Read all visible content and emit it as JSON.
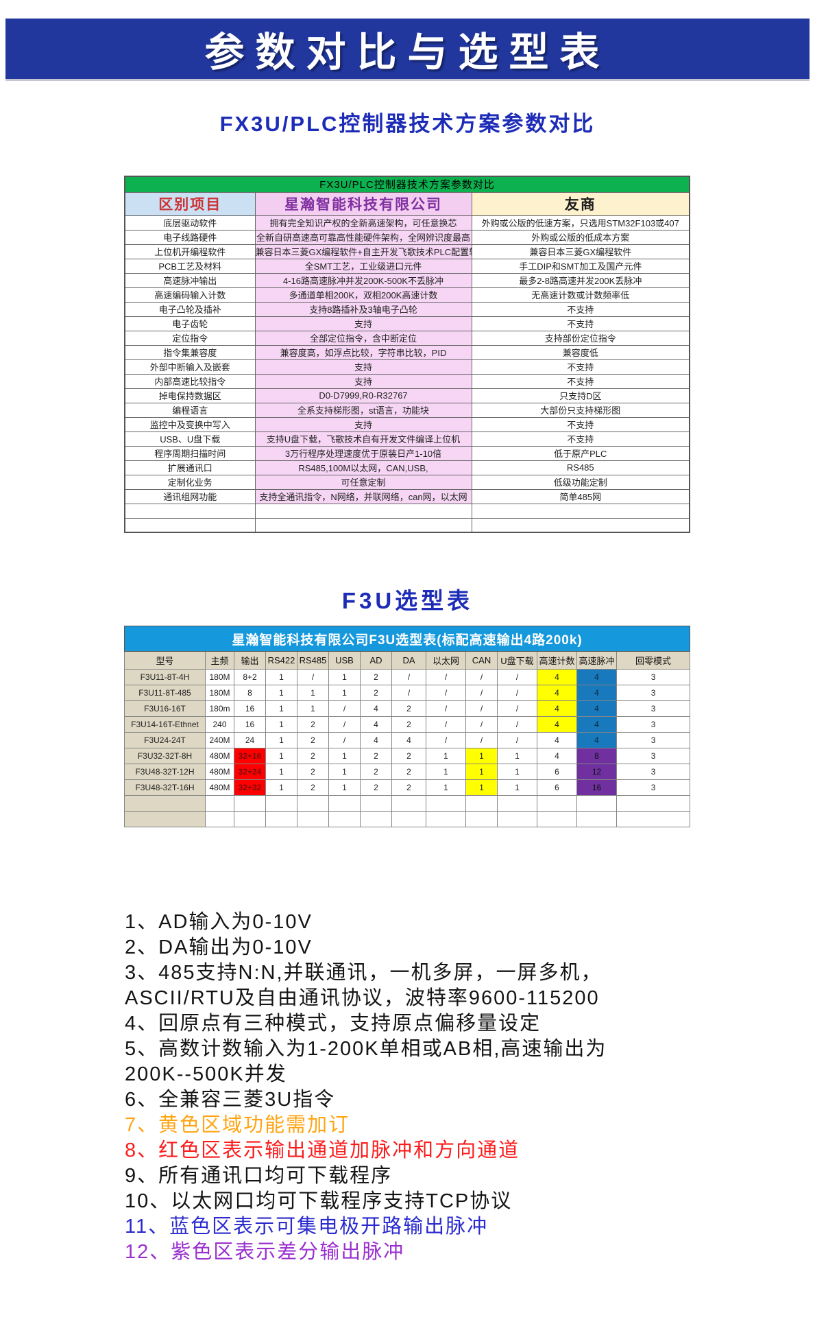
{
  "banner": {
    "title": "参数对比与选型表"
  },
  "section1": {
    "title": "FX3U/PLC控制器技术方案参数对比"
  },
  "table1": {
    "header": "FX3U/PLC控制器技术方案参数对比",
    "columns": [
      "区别项目",
      "星瀚智能科技有限公司",
      "友商"
    ],
    "rows": [
      [
        "底层驱动软件",
        "拥有完全知识产权的全新高速架构，可任意换芯",
        "外购或公版的低速方案，只选用STM32F103或407"
      ],
      [
        "电子线路硬件",
        "全新自研高速高可靠高性能硬件架构，全网辨识度最高",
        "外购或公版的低成本方案"
      ],
      [
        "上位机开编程软件",
        "兼容日本三菱GX编程软件+自主开发飞歌技术PLC配置软件",
        "兼容日本三菱GX编程软件"
      ],
      [
        "PCB工艺及材料",
        "全SMT工艺，工业级进口元件",
        "手工DIP和SMT加工及国产元件"
      ],
      [
        "高速脉冲输出",
        "4-16路高速脉冲并发200K-500K不丢脉冲",
        "最多2-8路高速并发200K丢脉冲"
      ],
      [
        "高速编码输入计数",
        "多通道单相200K，双相200K高速计数",
        "无高速计数或计数频率低"
      ],
      [
        "电子凸轮及插补",
        "支持8路插补及3轴电子凸轮",
        "不支持"
      ],
      [
        "电子齿轮",
        "支持",
        "不支持"
      ],
      [
        "定位指令",
        "全部定位指令，含中断定位",
        "支持部份定位指令"
      ],
      [
        "指令集兼容度",
        "兼容度高，如浮点比较，字符串比较，PID",
        "兼容度低"
      ],
      [
        "外部中断输入及嵌套",
        "支持",
        "不支持"
      ],
      [
        "内部高速比较指令",
        "支持",
        "不支持"
      ],
      [
        "掉电保持数据区",
        "D0-D7999,R0-R32767",
        "只支持D区"
      ],
      [
        "编程语言",
        "全系支持梯形图，st语言，功能块",
        "大部份只支持梯形图"
      ],
      [
        "监控中及变换中写入",
        "支持",
        "不支持"
      ],
      [
        "USB、U盘下载",
        "支持U盘下载，飞歌技术自有开发文件编译上位机",
        "不支持"
      ],
      [
        "程序周期扫描时间",
        "3万行程序处理速度优于原装日产1-10倍",
        "低于原产PLC"
      ],
      [
        "扩展通讯口",
        "RS485,100M以太网，CAN,USB,",
        "RS485"
      ],
      [
        "定制化业务",
        "可任意定制",
        "低级功能定制"
      ],
      [
        "通讯组网功能",
        "支持全通讯指令，N网络，并联网络，can网，以太网",
        "简单485网"
      ]
    ],
    "empty_rows": 2
  },
  "section2": {
    "title": "F3U选型表"
  },
  "table2": {
    "title": "星瀚智能科技有限公司F3U选型表(标配高速输出4路200k)",
    "columns": [
      "型号",
      "主频",
      "输出",
      "RS422",
      "RS485",
      "USB",
      "AD",
      "DA",
      "以太网",
      "CAN",
      "U盘下载",
      "高速计数",
      "高速脉冲",
      "回零模式"
    ],
    "cell_colors": {
      "yellow": "#ffff00",
      "blue": "#1879bd",
      "red": "#fe0000",
      "purple": "#7030a0"
    },
    "rows": [
      [
        {
          "v": "F3U11-8T-4H"
        },
        {
          "v": "180M"
        },
        {
          "v": "8+2"
        },
        {
          "v": "1"
        },
        {
          "v": "/"
        },
        {
          "v": "1"
        },
        {
          "v": "2"
        },
        {
          "v": "/"
        },
        {
          "v": "/"
        },
        {
          "v": "/"
        },
        {
          "v": "/"
        },
        {
          "v": "4",
          "bg": "yellow"
        },
        {
          "v": "4",
          "bg": "blue"
        },
        {
          "v": "3"
        }
      ],
      [
        {
          "v": "F3U11-8T-485"
        },
        {
          "v": "180M"
        },
        {
          "v": "8"
        },
        {
          "v": "1"
        },
        {
          "v": "1"
        },
        {
          "v": "1"
        },
        {
          "v": "2"
        },
        {
          "v": "/"
        },
        {
          "v": "/"
        },
        {
          "v": "/"
        },
        {
          "v": "/"
        },
        {
          "v": "4",
          "bg": "yellow"
        },
        {
          "v": "4",
          "bg": "blue"
        },
        {
          "v": "3"
        }
      ],
      [
        {
          "v": "F3U16-16T"
        },
        {
          "v": "180m"
        },
        {
          "v": "16"
        },
        {
          "v": "1"
        },
        {
          "v": "1"
        },
        {
          "v": "/"
        },
        {
          "v": "4"
        },
        {
          "v": "2"
        },
        {
          "v": "/"
        },
        {
          "v": "/"
        },
        {
          "v": "/"
        },
        {
          "v": "4",
          "bg": "yellow"
        },
        {
          "v": "4",
          "bg": "blue"
        },
        {
          "v": "3"
        }
      ],
      [
        {
          "v": "F3U14-16T-Ethnet"
        },
        {
          "v": "240"
        },
        {
          "v": "16"
        },
        {
          "v": "1"
        },
        {
          "v": "2"
        },
        {
          "v": "/"
        },
        {
          "v": "4"
        },
        {
          "v": "2"
        },
        {
          "v": "/"
        },
        {
          "v": "/"
        },
        {
          "v": "/"
        },
        {
          "v": "4",
          "bg": "yellow"
        },
        {
          "v": "4",
          "bg": "blue"
        },
        {
          "v": "3"
        }
      ],
      [
        {
          "v": "F3U24-24T"
        },
        {
          "v": "240M"
        },
        {
          "v": "24"
        },
        {
          "v": "1"
        },
        {
          "v": "2"
        },
        {
          "v": "/"
        },
        {
          "v": "4"
        },
        {
          "v": "4"
        },
        {
          "v": "/"
        },
        {
          "v": "/"
        },
        {
          "v": "/"
        },
        {
          "v": "4"
        },
        {
          "v": "4",
          "bg": "blue"
        },
        {
          "v": "3"
        }
      ],
      [
        {
          "v": "F3U32-32T-8H"
        },
        {
          "v": "480M"
        },
        {
          "v": "32+16",
          "bg": "red"
        },
        {
          "v": "1"
        },
        {
          "v": "2"
        },
        {
          "v": "1"
        },
        {
          "v": "2"
        },
        {
          "v": "2"
        },
        {
          "v": "1"
        },
        {
          "v": "1",
          "bg": "yellow"
        },
        {
          "v": "1"
        },
        {
          "v": "4"
        },
        {
          "v": "8",
          "bg": "purple"
        },
        {
          "v": "3"
        }
      ],
      [
        {
          "v": "F3U48-32T-12H"
        },
        {
          "v": "480M"
        },
        {
          "v": "32+24",
          "bg": "red"
        },
        {
          "v": "1"
        },
        {
          "v": "2"
        },
        {
          "v": "1"
        },
        {
          "v": "2"
        },
        {
          "v": "2"
        },
        {
          "v": "1"
        },
        {
          "v": "1",
          "bg": "yellow"
        },
        {
          "v": "1"
        },
        {
          "v": "6"
        },
        {
          "v": "12",
          "bg": "purple"
        },
        {
          "v": "3"
        }
      ],
      [
        {
          "v": "F3U48-32T-16H"
        },
        {
          "v": "480M"
        },
        {
          "v": "32+32",
          "bg": "red"
        },
        {
          "v": "1"
        },
        {
          "v": "2"
        },
        {
          "v": "1"
        },
        {
          "v": "2"
        },
        {
          "v": "2"
        },
        {
          "v": "1"
        },
        {
          "v": "1",
          "bg": "yellow"
        },
        {
          "v": "1"
        },
        {
          "v": "6"
        },
        {
          "v": "16",
          "bg": "purple"
        },
        {
          "v": "3"
        }
      ]
    ],
    "empty_rows": 2
  },
  "notes": {
    "colors": {
      "black": "#141414",
      "orange": "#ffa514",
      "red": "#fc1c1c",
      "blue": "#2a2ace",
      "purple": "#9a31cf"
    },
    "items": [
      {
        "text": "1、AD输入为0-10V",
        "color": "black"
      },
      {
        "text": "2、DA输出为0-10V",
        "color": "black"
      },
      {
        "text": "3、485支持N:N,并联通讯，一机多屏，一屏多机，",
        "color": "black"
      },
      {
        "text": "ASCII/RTU及自由通讯协议，波特率9600-115200",
        "color": "black"
      },
      {
        "text": "4、回原点有三种模式，支持原点偏移量设定",
        "color": "black"
      },
      {
        "text": "5、高数计数输入为1-200K单相或AB相,高速输出为",
        "color": "black"
      },
      {
        "text": "200K--500K并发",
        "color": "black"
      },
      {
        "text": "6、全兼容三菱3U指令",
        "color": "black"
      },
      {
        "text": "7、黄色区域功能需加订",
        "color": "orange"
      },
      {
        "text": "8、红色区表示输出通道加脉冲和方向通道",
        "color": "red"
      },
      {
        "text": "9、所有通讯口均可下载程序",
        "color": "black"
      },
      {
        "text": "10、以太网口均可下载程序支持TCP协议",
        "color": "black"
      },
      {
        "text": "11、蓝色区表示可集电极开路输出脉冲",
        "color": "blue"
      },
      {
        "text": "12、紫色区表示差分输出脉冲",
        "color": "purple"
      }
    ]
  },
  "theme": {
    "banner_bg": "#21379e",
    "title_blue": "#1d2cb7",
    "green": "#0db14f",
    "light_blue": "#cce0f4",
    "pink_header": "#f3cef1",
    "pink": "#f6d6f4",
    "light_yellow": "#fdf2cd",
    "beige": "#ddd7c3",
    "table2_header_bg": "#1598dc",
    "label_red": "#cc3333",
    "company_purple": "#8030a0"
  }
}
